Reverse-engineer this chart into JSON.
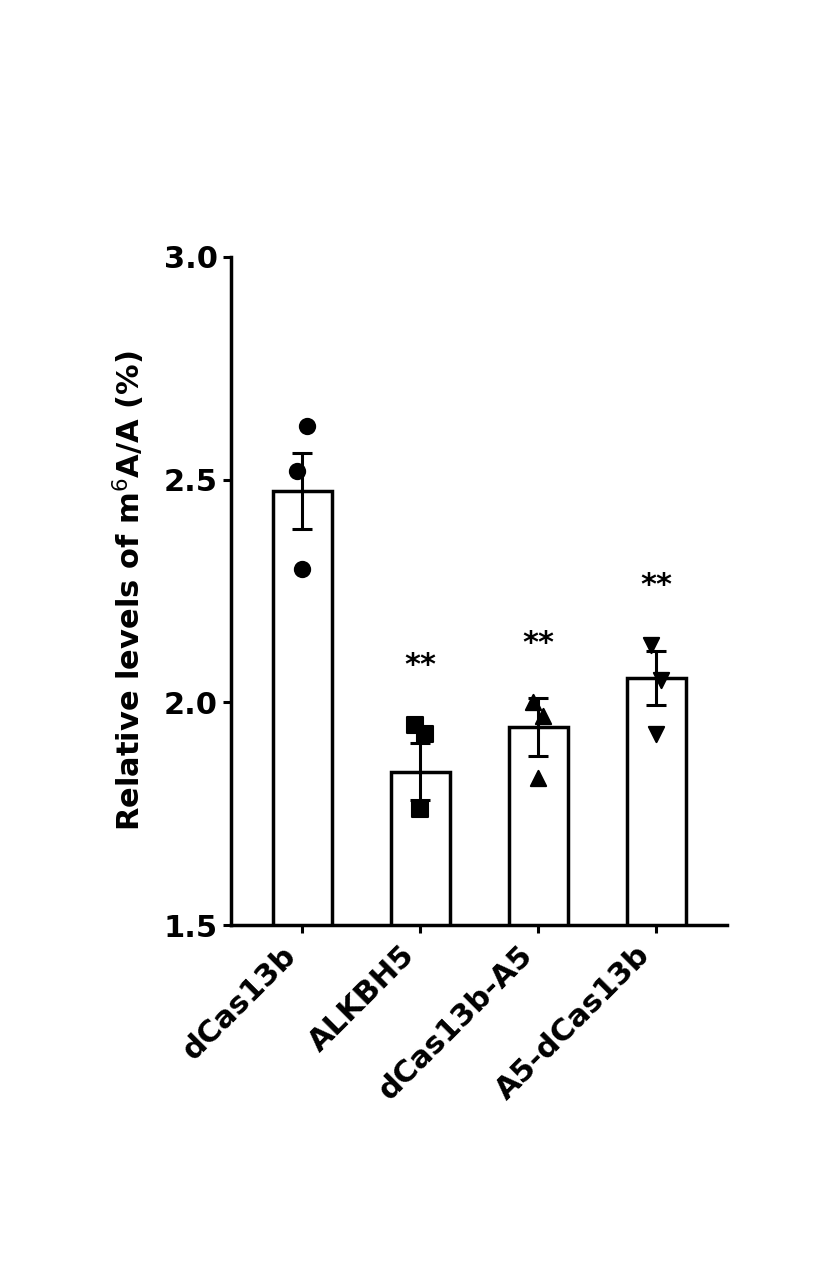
{
  "categories": [
    "dCas13b",
    "ALKBH5",
    "dCas13b-A5",
    "A5-dCas13b"
  ],
  "bar_values": [
    2.475,
    1.845,
    1.945,
    2.055
  ],
  "error_bars": [
    0.085,
    0.065,
    0.065,
    0.06
  ],
  "scatter_points": [
    [
      2.52,
      2.62,
      2.3
    ],
    [
      1.95,
      1.93,
      1.76
    ],
    [
      2.0,
      1.97,
      1.83
    ],
    [
      2.13,
      2.05,
      1.93
    ]
  ],
  "scatter_markers": [
    "o",
    "s",
    "^",
    "v"
  ],
  "scatter_sizes": [
    120,
    120,
    120,
    120
  ],
  "significance": [
    false,
    true,
    true,
    true
  ],
  "sig_label": "**",
  "ylim": [
    1.5,
    3.0
  ],
  "yticks": [
    1.5,
    2.0,
    2.5,
    3.0
  ],
  "bar_color": "#ffffff",
  "bar_edgecolor": "#000000",
  "scatter_color": "#000000",
  "errorbar_color": "#000000",
  "bar_width": 0.5,
  "label_fontsize": 22,
  "tick_fontsize": 22,
  "sig_fontsize": 22,
  "spine_linewidth": 2.5
}
